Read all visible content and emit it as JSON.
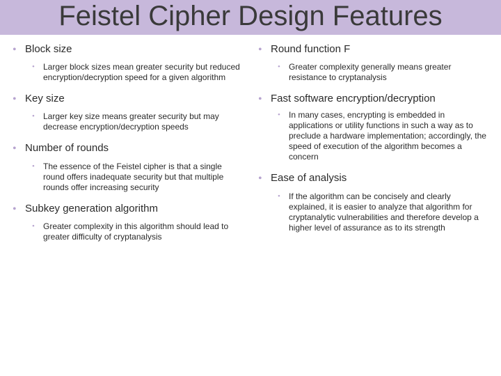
{
  "title": "Feistel Cipher Design Features",
  "colors": {
    "title_bg": "#c7b8db",
    "title_text": "#3a3a3a",
    "bullet": "#b6a3cf",
    "body_text": "#2a2a2a",
    "page_bg": "#ffffff"
  },
  "typography": {
    "title_fontsize": 40,
    "heading_fontsize": 15,
    "body_fontsize": 12,
    "title_family": "Segoe UI Light",
    "body_family": "Trebuchet MS"
  },
  "left": [
    {
      "heading": "Block size",
      "body": "Larger block sizes mean greater security but reduced encryption/decryption speed for a given algorithm"
    },
    {
      "heading": "Key size",
      "body": "Larger key size means greater security but may decrease encryption/decryption speeds"
    },
    {
      "heading": "Number of rounds",
      "body": "The essence of the Feistel cipher is that a single round offers inadequate security but that multiple rounds offer increasing security"
    },
    {
      "heading": "Subkey generation algorithm",
      "body": "Greater complexity in this algorithm should lead to greater difficulty of cryptanalysis"
    }
  ],
  "right": [
    {
      "heading": "Round function F",
      "body": "Greater complexity generally means greater resistance to cryptanalysis"
    },
    {
      "heading": "Fast software encryption/decryption",
      "body": "In many cases, encrypting is embedded in applications or utility functions in such a way as to preclude a hardware implementation; accordingly, the speed of execution of the algorithm becomes a concern"
    },
    {
      "heading": "Ease of analysis",
      "body": "If the algorithm can be concisely and clearly explained, it is easier to analyze that algorithm for cryptanalytic vulnerabilities and therefore develop a higher level of assurance as to its strength"
    }
  ]
}
